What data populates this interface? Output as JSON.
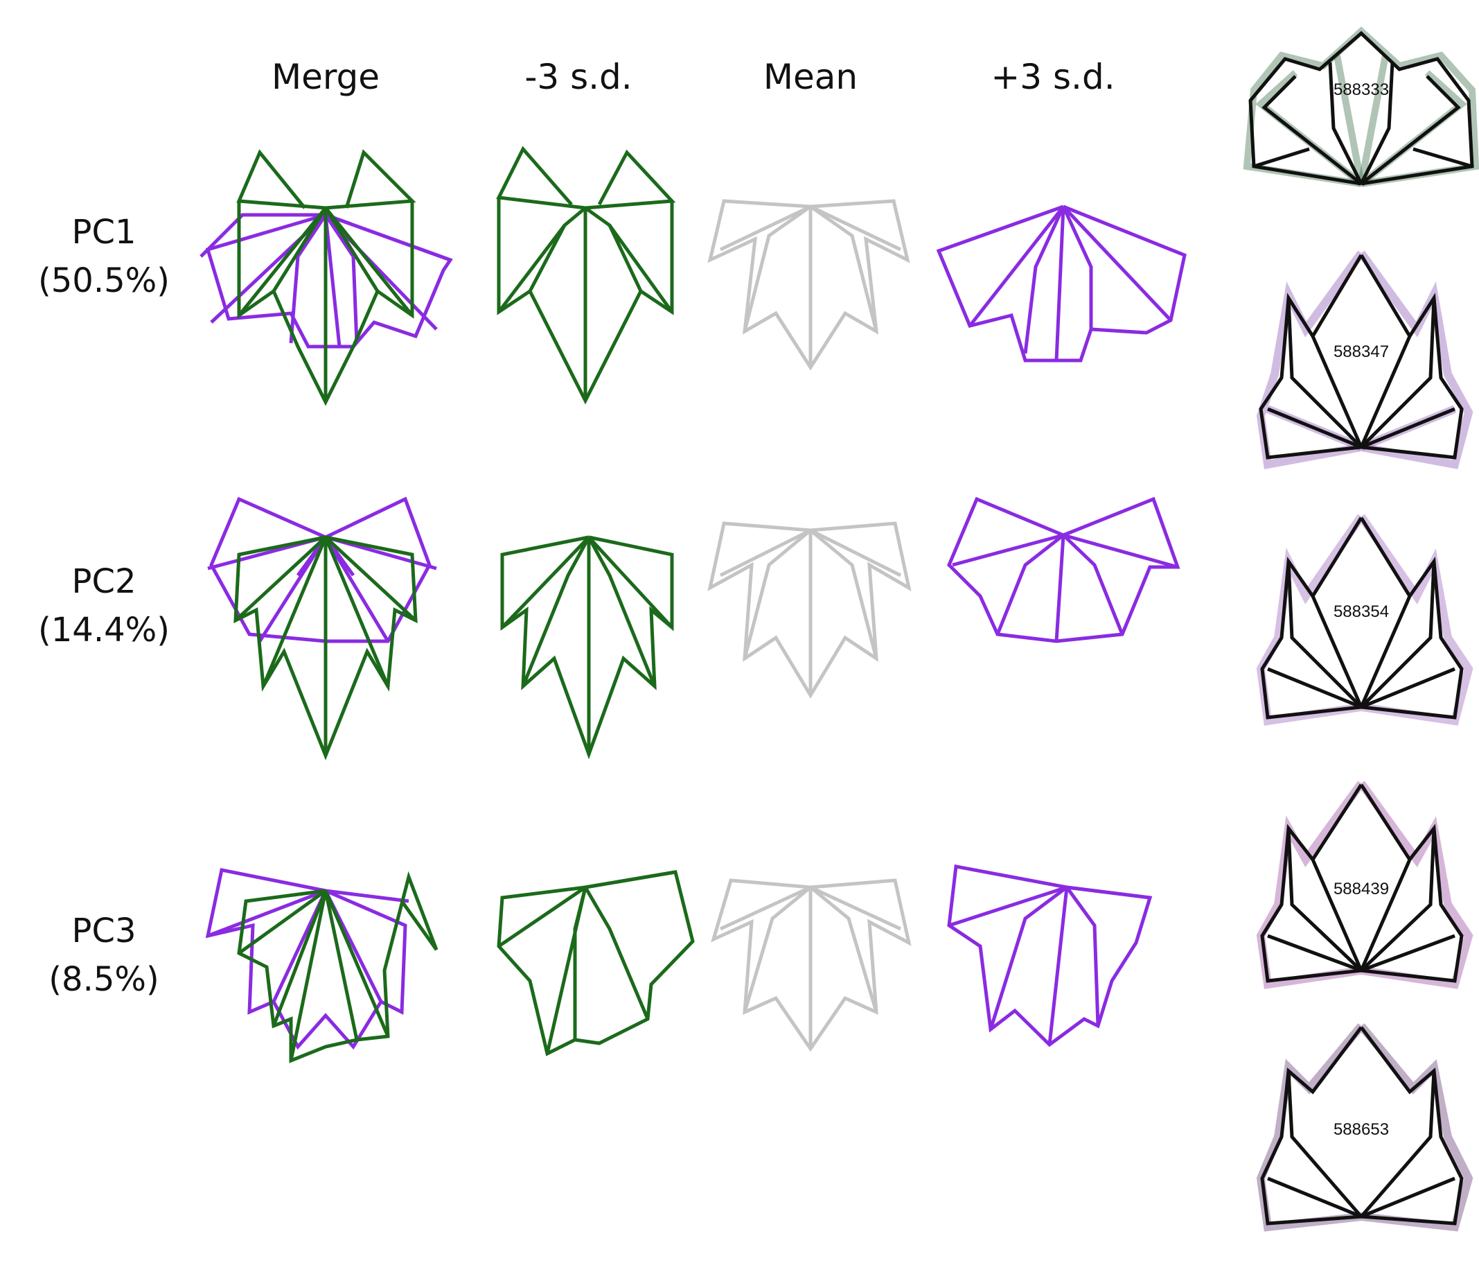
{
  "columns": [
    {
      "label": "Merge"
    },
    {
      "label": "-3 s.d."
    },
    {
      "label": "Mean"
    },
    {
      "label": "+3 s.d."
    }
  ],
  "rows": [
    {
      "pc": "PC1",
      "variance": "(50.5%)"
    },
    {
      "pc": "PC2",
      "variance": "(14.4%)"
    },
    {
      "pc": "PC3",
      "variance": "(8.5%)"
    }
  ],
  "accessions": [
    {
      "id": "588333",
      "color": "#1e5a2a"
    },
    {
      "id": "588347",
      "color": "#7a3fa8"
    },
    {
      "id": "588354",
      "color": "#8a4bb0"
    },
    {
      "id": "588439",
      "color": "#8a2f8f"
    },
    {
      "id": "588653",
      "color": "#4a1a5e"
    }
  ],
  "colors": {
    "negative": "#1b6a1b",
    "mean": "#c4c4c4",
    "positive": "#8a2be2",
    "outline_black": "#111111"
  }
}
